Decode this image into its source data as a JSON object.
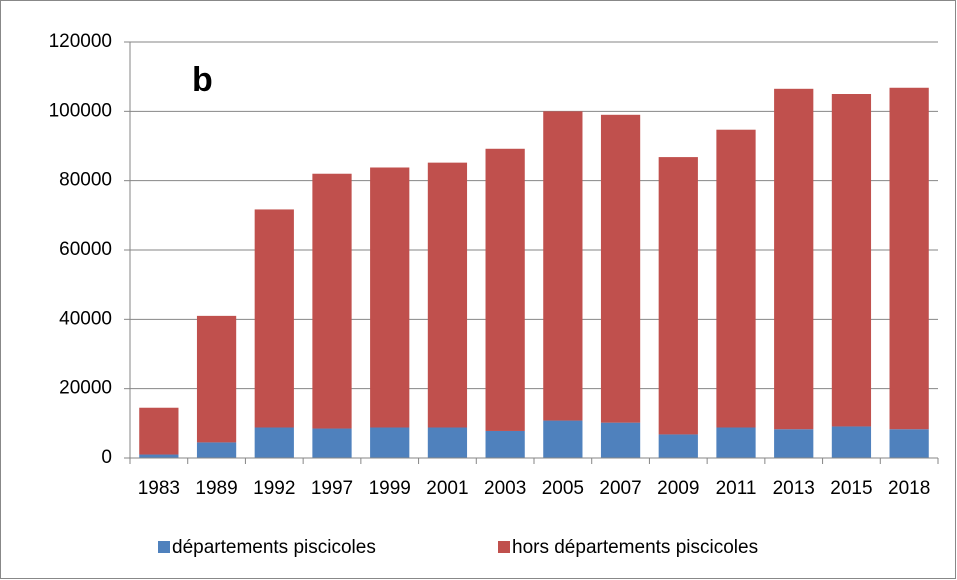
{
  "chart_data": {
    "type": "stacked_bar",
    "annotation": "b",
    "categories": [
      "1983",
      "1989",
      "1992",
      "1997",
      "1999",
      "2001",
      "2003",
      "2005",
      "2007",
      "2009",
      "2011",
      "2013",
      "2015",
      "2018"
    ],
    "series": [
      {
        "name": "départements piscicoles",
        "color": "#4f81bd",
        "values": [
          1000,
          4500,
          8800,
          8500,
          8800,
          8800,
          7800,
          10800,
          10200,
          6800,
          8800,
          8300,
          9100,
          8300
        ]
      },
      {
        "name": "hors départements piscicoles",
        "color": "#c0504d",
        "values": [
          13500,
          36500,
          62900,
          73500,
          75000,
          76400,
          81400,
          89200,
          88800,
          80000,
          85900,
          98200,
          95900,
          98500
        ]
      }
    ],
    "ylim": [
      0,
      120000
    ],
    "yticks": [
      0,
      20000,
      40000,
      60000,
      80000,
      100000,
      120000
    ],
    "grid": true,
    "legend": "bottom"
  }
}
